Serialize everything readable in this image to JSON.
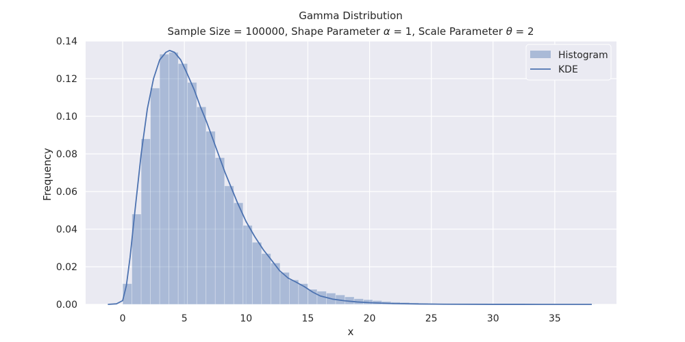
{
  "chart_data": {
    "type": "bar",
    "title": "Gamma Distribution",
    "subtitle_parts": {
      "prefix": "Sample Size = 100000, Shape Parameter ",
      "alpha_symbol": "α",
      "middle": " = 1, Scale Parameter ",
      "theta_symbol": "θ",
      "suffix": " = 2"
    },
    "xlabel": "x",
    "ylabel": "Frequency",
    "xlim": [
      -3,
      40
    ],
    "ylim": [
      0,
      0.14
    ],
    "xticks": [
      0,
      5,
      10,
      15,
      20,
      25,
      30,
      35
    ],
    "yticks": [
      0.0,
      0.02,
      0.04,
      0.06,
      0.08,
      0.1,
      0.12,
      0.14
    ],
    "ytick_labels": [
      "0.00",
      "0.02",
      "0.04",
      "0.06",
      "0.08",
      "0.10",
      "0.12",
      "0.14"
    ],
    "grid": true,
    "legend_position": "top-right",
    "legend": [
      "Histogram",
      "KDE"
    ],
    "colors": {
      "background": "#eaeaf2",
      "grid": "#ffffff",
      "histogram": "#4c72b0",
      "kde": "#4c72b0"
    },
    "histogram": {
      "bin_width": 0.75,
      "bins_start": 0,
      "values": [
        0.011,
        0.048,
        0.088,
        0.115,
        0.133,
        0.134,
        0.128,
        0.118,
        0.105,
        0.092,
        0.078,
        0.063,
        0.054,
        0.042,
        0.033,
        0.027,
        0.022,
        0.017,
        0.013,
        0.011,
        0.008,
        0.007,
        0.006,
        0.005,
        0.004,
        0.003,
        0.0025,
        0.002,
        0.0015,
        0.0012,
        0.001,
        0.0008,
        0.0006,
        0.0005,
        0.0004,
        0.0003,
        0.0003,
        0.0002,
        0.0002,
        0.0002,
        0.0001,
        0.0001,
        0.0001,
        0.0001,
        0.0001,
        0.0001,
        0.0001,
        0.0001,
        0.0001,
        0.0001,
        0.0001
      ]
    },
    "kde": {
      "x": [
        -1.2,
        -0.5,
        0,
        0.3,
        0.6,
        1,
        1.5,
        2,
        2.5,
        3,
        3.5,
        3.8,
        4.2,
        4.7,
        5.2,
        5.8,
        6.3,
        6.8,
        7.3,
        7.8,
        8.3,
        8.8,
        9.3,
        10,
        10.7,
        11.4,
        12,
        12.7,
        13.4,
        14,
        14.7,
        15.4,
        16,
        17,
        18,
        19,
        20,
        22,
        24,
        26,
        30,
        34,
        38
      ],
      "y": [
        0.0,
        0.0003,
        0.002,
        0.01,
        0.025,
        0.05,
        0.08,
        0.104,
        0.12,
        0.13,
        0.134,
        0.135,
        0.134,
        0.13,
        0.123,
        0.114,
        0.105,
        0.097,
        0.088,
        0.079,
        0.07,
        0.062,
        0.054,
        0.044,
        0.036,
        0.029,
        0.024,
        0.018,
        0.014,
        0.012,
        0.0095,
        0.0065,
        0.0045,
        0.0028,
        0.0019,
        0.0013,
        0.0009,
        0.0004,
        0.0002,
        0.0001,
        3e-05,
        1e-05,
        0.0
      ]
    }
  }
}
